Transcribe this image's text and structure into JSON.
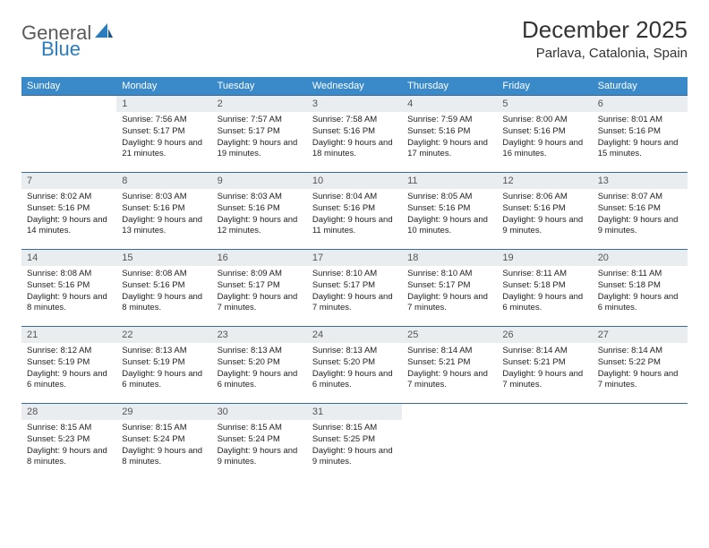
{
  "logo": {
    "word1": "General",
    "word2": "Blue"
  },
  "title": "December 2025",
  "location": "Parlava, Catalonia, Spain",
  "colors": {
    "header_bg": "#3a89c9",
    "header_text": "#ffffff",
    "row_border": "#3a6a9a",
    "daynum_bg": "#e9edf0",
    "logo_gray": "#5a5a5a",
    "logo_blue": "#2b7bbf"
  },
  "typography": {
    "title_fontsize": 26,
    "location_fontsize": 15,
    "header_fontsize": 11,
    "daynum_fontsize": 11,
    "content_fontsize": 9.5
  },
  "day_headers": [
    "Sunday",
    "Monday",
    "Tuesday",
    "Wednesday",
    "Thursday",
    "Friday",
    "Saturday"
  ],
  "weeks": [
    [
      {
        "n": "",
        "sr": "",
        "ss": "",
        "dl": ""
      },
      {
        "n": "1",
        "sr": "Sunrise: 7:56 AM",
        "ss": "Sunset: 5:17 PM",
        "dl": "Daylight: 9 hours and 21 minutes."
      },
      {
        "n": "2",
        "sr": "Sunrise: 7:57 AM",
        "ss": "Sunset: 5:17 PM",
        "dl": "Daylight: 9 hours and 19 minutes."
      },
      {
        "n": "3",
        "sr": "Sunrise: 7:58 AM",
        "ss": "Sunset: 5:16 PM",
        "dl": "Daylight: 9 hours and 18 minutes."
      },
      {
        "n": "4",
        "sr": "Sunrise: 7:59 AM",
        "ss": "Sunset: 5:16 PM",
        "dl": "Daylight: 9 hours and 17 minutes."
      },
      {
        "n": "5",
        "sr": "Sunrise: 8:00 AM",
        "ss": "Sunset: 5:16 PM",
        "dl": "Daylight: 9 hours and 16 minutes."
      },
      {
        "n": "6",
        "sr": "Sunrise: 8:01 AM",
        "ss": "Sunset: 5:16 PM",
        "dl": "Daylight: 9 hours and 15 minutes."
      }
    ],
    [
      {
        "n": "7",
        "sr": "Sunrise: 8:02 AM",
        "ss": "Sunset: 5:16 PM",
        "dl": "Daylight: 9 hours and 14 minutes."
      },
      {
        "n": "8",
        "sr": "Sunrise: 8:03 AM",
        "ss": "Sunset: 5:16 PM",
        "dl": "Daylight: 9 hours and 13 minutes."
      },
      {
        "n": "9",
        "sr": "Sunrise: 8:03 AM",
        "ss": "Sunset: 5:16 PM",
        "dl": "Daylight: 9 hours and 12 minutes."
      },
      {
        "n": "10",
        "sr": "Sunrise: 8:04 AM",
        "ss": "Sunset: 5:16 PM",
        "dl": "Daylight: 9 hours and 11 minutes."
      },
      {
        "n": "11",
        "sr": "Sunrise: 8:05 AM",
        "ss": "Sunset: 5:16 PM",
        "dl": "Daylight: 9 hours and 10 minutes."
      },
      {
        "n": "12",
        "sr": "Sunrise: 8:06 AM",
        "ss": "Sunset: 5:16 PM",
        "dl": "Daylight: 9 hours and 9 minutes."
      },
      {
        "n": "13",
        "sr": "Sunrise: 8:07 AM",
        "ss": "Sunset: 5:16 PM",
        "dl": "Daylight: 9 hours and 9 minutes."
      }
    ],
    [
      {
        "n": "14",
        "sr": "Sunrise: 8:08 AM",
        "ss": "Sunset: 5:16 PM",
        "dl": "Daylight: 9 hours and 8 minutes."
      },
      {
        "n": "15",
        "sr": "Sunrise: 8:08 AM",
        "ss": "Sunset: 5:16 PM",
        "dl": "Daylight: 9 hours and 8 minutes."
      },
      {
        "n": "16",
        "sr": "Sunrise: 8:09 AM",
        "ss": "Sunset: 5:17 PM",
        "dl": "Daylight: 9 hours and 7 minutes."
      },
      {
        "n": "17",
        "sr": "Sunrise: 8:10 AM",
        "ss": "Sunset: 5:17 PM",
        "dl": "Daylight: 9 hours and 7 minutes."
      },
      {
        "n": "18",
        "sr": "Sunrise: 8:10 AM",
        "ss": "Sunset: 5:17 PM",
        "dl": "Daylight: 9 hours and 7 minutes."
      },
      {
        "n": "19",
        "sr": "Sunrise: 8:11 AM",
        "ss": "Sunset: 5:18 PM",
        "dl": "Daylight: 9 hours and 6 minutes."
      },
      {
        "n": "20",
        "sr": "Sunrise: 8:11 AM",
        "ss": "Sunset: 5:18 PM",
        "dl": "Daylight: 9 hours and 6 minutes."
      }
    ],
    [
      {
        "n": "21",
        "sr": "Sunrise: 8:12 AM",
        "ss": "Sunset: 5:19 PM",
        "dl": "Daylight: 9 hours and 6 minutes."
      },
      {
        "n": "22",
        "sr": "Sunrise: 8:13 AM",
        "ss": "Sunset: 5:19 PM",
        "dl": "Daylight: 9 hours and 6 minutes."
      },
      {
        "n": "23",
        "sr": "Sunrise: 8:13 AM",
        "ss": "Sunset: 5:20 PM",
        "dl": "Daylight: 9 hours and 6 minutes."
      },
      {
        "n": "24",
        "sr": "Sunrise: 8:13 AM",
        "ss": "Sunset: 5:20 PM",
        "dl": "Daylight: 9 hours and 6 minutes."
      },
      {
        "n": "25",
        "sr": "Sunrise: 8:14 AM",
        "ss": "Sunset: 5:21 PM",
        "dl": "Daylight: 9 hours and 7 minutes."
      },
      {
        "n": "26",
        "sr": "Sunrise: 8:14 AM",
        "ss": "Sunset: 5:21 PM",
        "dl": "Daylight: 9 hours and 7 minutes."
      },
      {
        "n": "27",
        "sr": "Sunrise: 8:14 AM",
        "ss": "Sunset: 5:22 PM",
        "dl": "Daylight: 9 hours and 7 minutes."
      }
    ],
    [
      {
        "n": "28",
        "sr": "Sunrise: 8:15 AM",
        "ss": "Sunset: 5:23 PM",
        "dl": "Daylight: 9 hours and 8 minutes."
      },
      {
        "n": "29",
        "sr": "Sunrise: 8:15 AM",
        "ss": "Sunset: 5:24 PM",
        "dl": "Daylight: 9 hours and 8 minutes."
      },
      {
        "n": "30",
        "sr": "Sunrise: 8:15 AM",
        "ss": "Sunset: 5:24 PM",
        "dl": "Daylight: 9 hours and 9 minutes."
      },
      {
        "n": "31",
        "sr": "Sunrise: 8:15 AM",
        "ss": "Sunset: 5:25 PM",
        "dl": "Daylight: 9 hours and 9 minutes."
      },
      {
        "n": "",
        "sr": "",
        "ss": "",
        "dl": ""
      },
      {
        "n": "",
        "sr": "",
        "ss": "",
        "dl": ""
      },
      {
        "n": "",
        "sr": "",
        "ss": "",
        "dl": ""
      }
    ]
  ]
}
